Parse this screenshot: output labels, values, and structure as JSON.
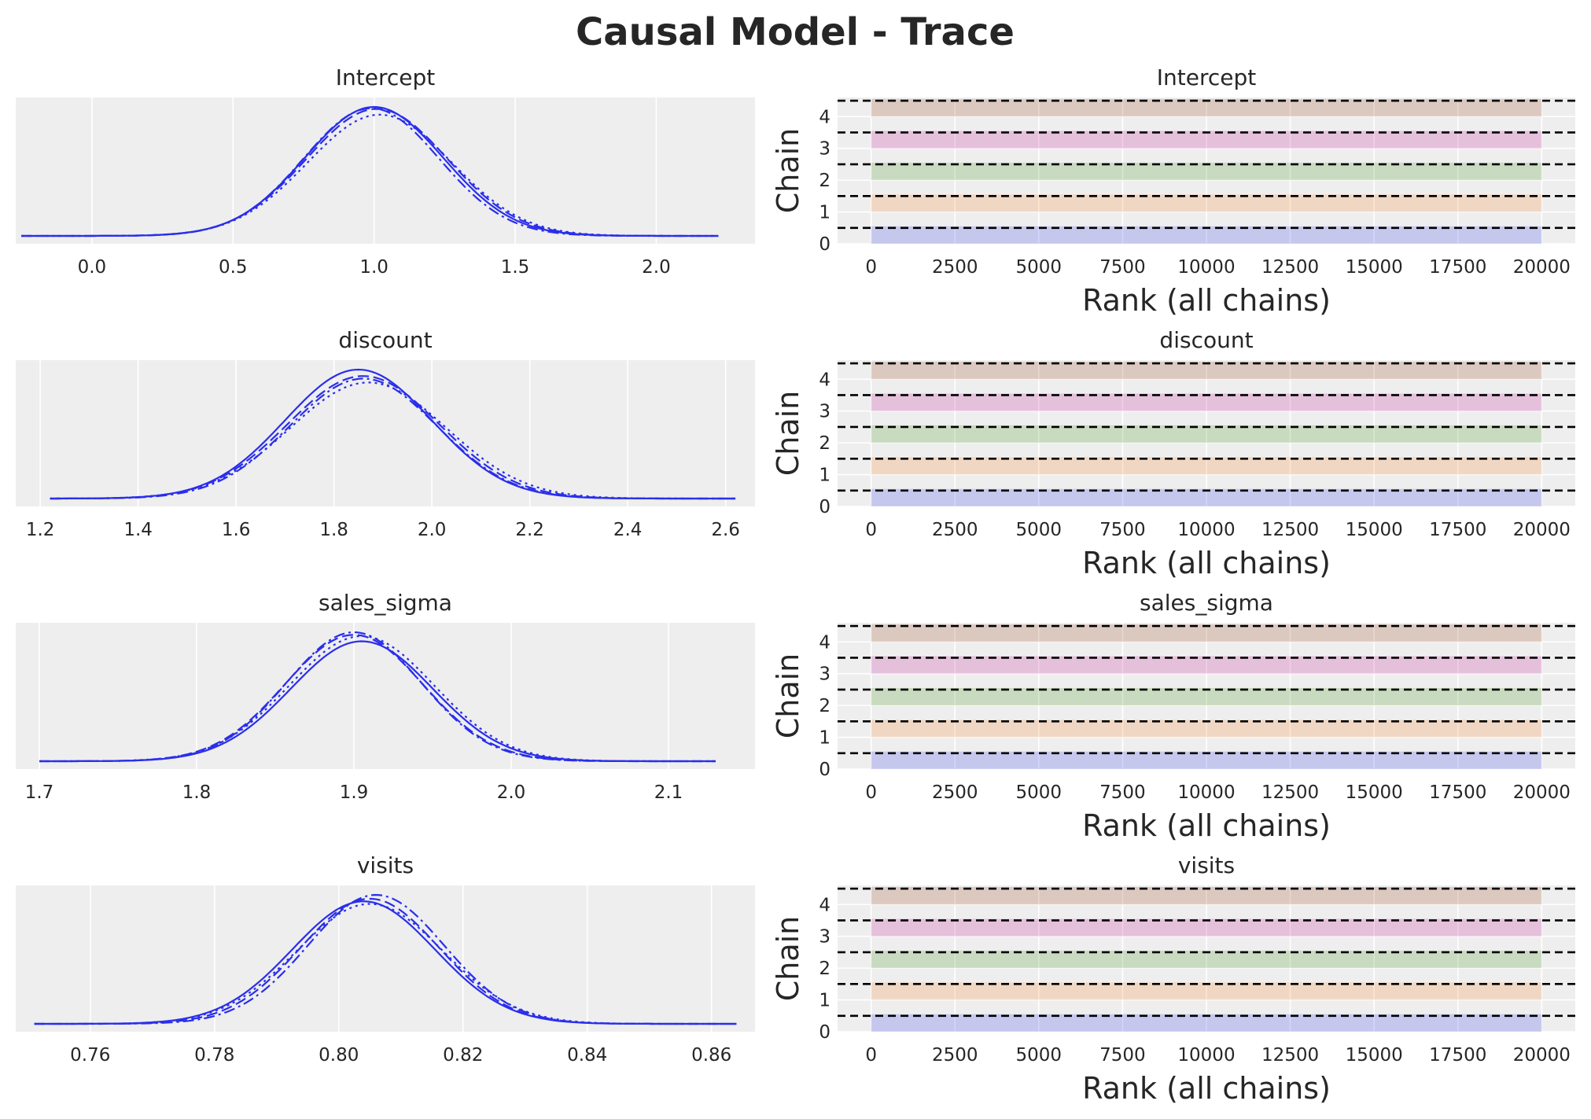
{
  "figure": {
    "title": "Causal Model - Trace"
  },
  "colors": {
    "panel_bg": "#eeeeee",
    "grid": "#ffffff",
    "kde_line": "#2a2eec",
    "chain_colors": [
      "#2a2eec",
      "#fa7c17",
      "#328c06",
      "#c10c90",
      "#933708"
    ],
    "hline": "#000000"
  },
  "chart_data": [
    {
      "type": "line",
      "title": "Intercept",
      "xticks": [
        "0.0",
        "0.5",
        "1.0",
        "1.5",
        "2.0"
      ],
      "xlim": [
        -0.27,
        2.35
      ],
      "x_range": [
        -0.25,
        2.22
      ],
      "series": [
        {
          "mean": 1.0,
          "sd": 0.245,
          "peak": 1.0,
          "style": "solid"
        },
        {
          "mean": 1.01,
          "sd": 0.25,
          "peak": 0.985,
          "style": "dashed"
        },
        {
          "mean": 0.99,
          "sd": 0.24,
          "peak": 0.99,
          "style": "dashdot"
        },
        {
          "mean": 1.02,
          "sd": 0.255,
          "peak": 0.94,
          "style": "dotted"
        }
      ]
    },
    {
      "type": "line",
      "title": "discount",
      "xticks": [
        "1.2",
        "1.4",
        "1.6",
        "1.8",
        "2.0",
        "2.2",
        "2.4",
        "2.6"
      ],
      "xlim": [
        1.15,
        2.66
      ],
      "x_range": [
        1.22,
        2.62
      ],
      "series": [
        {
          "mean": 1.85,
          "sd": 0.15,
          "peak": 1.0,
          "style": "solid"
        },
        {
          "mean": 1.86,
          "sd": 0.155,
          "peak": 0.95,
          "style": "dashed"
        },
        {
          "mean": 1.86,
          "sd": 0.15,
          "peak": 0.93,
          "style": "dashdot"
        },
        {
          "mean": 1.87,
          "sd": 0.16,
          "peak": 0.9,
          "style": "dotted"
        }
      ]
    },
    {
      "type": "line",
      "title": "sales_sigma",
      "xticks": [
        "1.7",
        "1.8",
        "1.9",
        "2.0",
        "2.1"
      ],
      "xlim": [
        1.685,
        2.155
      ],
      "x_range": [
        1.7,
        2.13
      ],
      "series": [
        {
          "mean": 1.905,
          "sd": 0.045,
          "peak": 0.93,
          "style": "solid"
        },
        {
          "mean": 1.9,
          "sd": 0.044,
          "peak": 0.98,
          "style": "dashed"
        },
        {
          "mean": 1.9,
          "sd": 0.043,
          "peak": 1.0,
          "style": "dashdot"
        },
        {
          "mean": 1.905,
          "sd": 0.046,
          "peak": 0.97,
          "style": "dotted"
        }
      ]
    },
    {
      "type": "line",
      "title": "visits",
      "xticks": [
        "0.76",
        "0.78",
        "0.80",
        "0.82",
        "0.84",
        "0.86"
      ],
      "xlim": [
        0.748,
        0.867
      ],
      "x_range": [
        0.751,
        0.864
      ],
      "series": [
        {
          "mean": 0.804,
          "sd": 0.0115,
          "peak": 0.95,
          "style": "solid"
        },
        {
          "mean": 0.805,
          "sd": 0.0112,
          "peak": 0.97,
          "style": "dashed"
        },
        {
          "mean": 0.806,
          "sd": 0.011,
          "peak": 1.0,
          "style": "dashdot"
        },
        {
          "mean": 0.805,
          "sd": 0.0118,
          "peak": 0.93,
          "style": "dotted"
        }
      ]
    },
    {
      "type": "bar",
      "title": "Intercept",
      "xlabel": "Rank (all chains)",
      "ylabel": "Chain",
      "xticks": [
        "0",
        "2500",
        "5000",
        "7500",
        "10000",
        "12500",
        "15000",
        "17500",
        "20000"
      ],
      "yticks": [
        "0",
        "1",
        "2",
        "3",
        "4"
      ],
      "xlim": [
        -1000,
        21000
      ],
      "ylim": [
        0,
        4.6
      ],
      "chains": [
        0,
        1,
        2,
        3,
        4
      ],
      "rank_max": 20000
    },
    {
      "type": "bar",
      "title": "discount",
      "xlabel": "Rank (all chains)",
      "ylabel": "Chain",
      "xticks": [
        "0",
        "2500",
        "5000",
        "7500",
        "10000",
        "12500",
        "15000",
        "17500",
        "20000"
      ],
      "yticks": [
        "0",
        "1",
        "2",
        "3",
        "4"
      ],
      "xlim": [
        -1000,
        21000
      ],
      "ylim": [
        0,
        4.6
      ],
      "chains": [
        0,
        1,
        2,
        3,
        4
      ],
      "rank_max": 20000
    },
    {
      "type": "bar",
      "title": "sales_sigma",
      "xlabel": "Rank (all chains)",
      "ylabel": "Chain",
      "xticks": [
        "0",
        "2500",
        "5000",
        "7500",
        "10000",
        "12500",
        "15000",
        "17500",
        "20000"
      ],
      "yticks": [
        "0",
        "1",
        "2",
        "3",
        "4"
      ],
      "xlim": [
        -1000,
        21000
      ],
      "ylim": [
        0,
        4.6
      ],
      "chains": [
        0,
        1,
        2,
        3,
        4
      ],
      "rank_max": 20000
    },
    {
      "type": "bar",
      "title": "visits",
      "xlabel": "Rank (all chains)",
      "ylabel": "Chain",
      "xticks": [
        "0",
        "2500",
        "5000",
        "7500",
        "10000",
        "12500",
        "15000",
        "17500",
        "20000"
      ],
      "yticks": [
        "0",
        "1",
        "2",
        "3",
        "4"
      ],
      "xlim": [
        -1000,
        21000
      ],
      "ylim": [
        0,
        4.6
      ],
      "chains": [
        0,
        1,
        2,
        3,
        4
      ],
      "rank_max": 20000
    }
  ]
}
